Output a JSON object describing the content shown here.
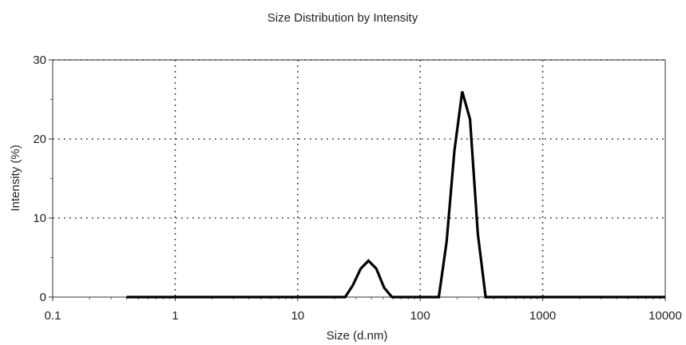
{
  "chart_data": {
    "type": "line",
    "title": "Size Distribution by Intensity",
    "xlabel": "Size (d.nm)",
    "ylabel": "Intensity (%)",
    "x_scale": "log",
    "xlim": [
      0.1,
      10000
    ],
    "ylim": [
      0,
      30
    ],
    "x_ticks": [
      0.1,
      1,
      10,
      100,
      1000,
      10000
    ],
    "x_tick_labels": [
      "0.1",
      "1",
      "10",
      "100",
      "1000",
      "10000"
    ],
    "y_ticks": [
      0,
      10,
      20,
      30
    ],
    "y_tick_labels": [
      "0",
      "10",
      "20",
      "30"
    ],
    "grid": true,
    "series": [
      {
        "color": "#000000",
        "points": [
          [
            0.4,
            0
          ],
          [
            24.4,
            0
          ],
          [
            28.2,
            1.5
          ],
          [
            32.7,
            3.6
          ],
          [
            37.8,
            4.6
          ],
          [
            43.8,
            3.6
          ],
          [
            50.7,
            1.2
          ],
          [
            58.8,
            0
          ],
          [
            141.8,
            0
          ],
          [
            164.2,
            7.0
          ],
          [
            190.1,
            18.5
          ],
          [
            220.2,
            26.0
          ],
          [
            255.0,
            22.5
          ],
          [
            295.3,
            8.0
          ],
          [
            342.0,
            0
          ],
          [
            10000,
            0
          ]
        ]
      }
    ]
  }
}
